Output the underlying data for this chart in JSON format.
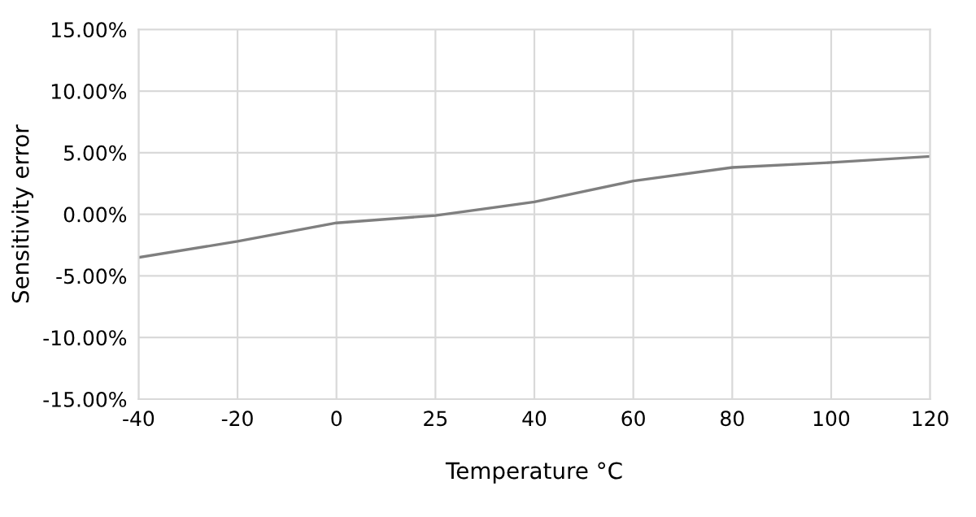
{
  "chart_data": {
    "type": "line",
    "xlabel": "Temperature °C",
    "ylabel": "Sensitivity error",
    "categories": [
      "-40",
      "-20",
      "0",
      "25",
      "40",
      "60",
      "80",
      "100",
      "120"
    ],
    "series": [
      {
        "color": "#7f7f7f",
        "values": [
          -3.5,
          -2.2,
          -0.7,
          -0.1,
          1.0,
          2.7,
          3.8,
          4.2,
          4.7
        ]
      }
    ],
    "ylim": [
      -15,
      15
    ],
    "yticks": [
      {
        "value": -15,
        "label": "-15.00%"
      },
      {
        "value": -10,
        "label": "-10.00%"
      },
      {
        "value": -5,
        "label": "-5.00%"
      },
      {
        "value": 0,
        "label": "0.00%"
      },
      {
        "value": 5,
        "label": "5.00%"
      },
      {
        "value": 10,
        "label": "10.00%"
      },
      {
        "value": 15,
        "label": "15.00%"
      }
    ],
    "grid": true,
    "legend": false,
    "marker": "none",
    "line_style": "solid"
  }
}
